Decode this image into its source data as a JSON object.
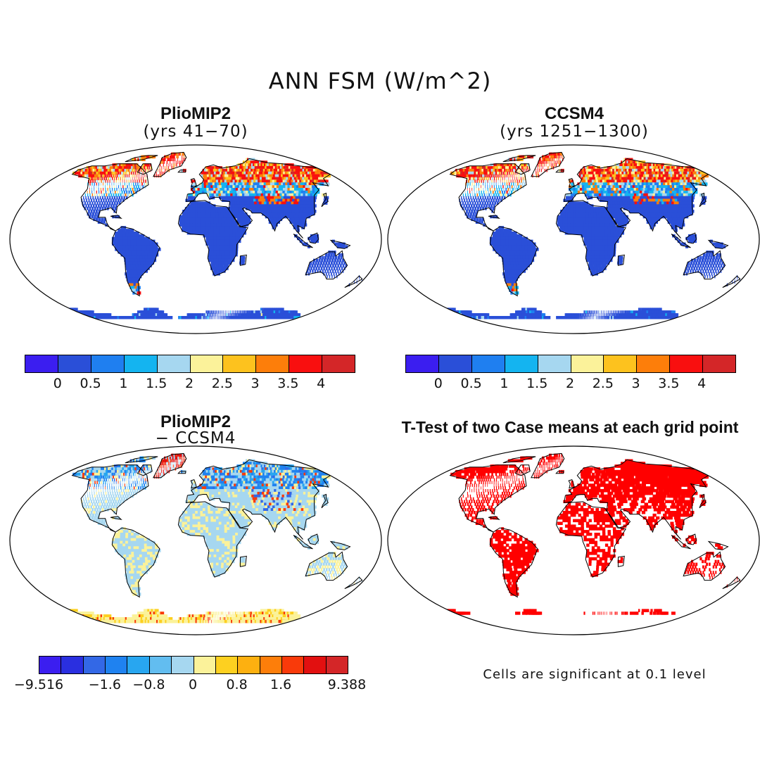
{
  "figure": {
    "title": "ANN FSM (W/m^2)"
  },
  "panels": [
    {
      "id": "pliomip2",
      "title": "PlioMIP2",
      "subtitle": "(yrs 41−70)",
      "field": "absolute"
    },
    {
      "id": "ccsm4",
      "title": "CCSM4",
      "subtitle": "(yrs 1251−1300)",
      "field": "absolute"
    },
    {
      "id": "diff",
      "title": "PlioMIP2",
      "subtitle": "− CCSM4",
      "field": "difference"
    },
    {
      "id": "ttest",
      "title": "T-Test of two Case means at each grid point",
      "subtitle": "",
      "field": "significance"
    }
  ],
  "colorbars": {
    "absolute": {
      "colors": [
        "#3b1ef0",
        "#2a4fd8",
        "#1f7ff0",
        "#14b4f0",
        "#a6d7f0",
        "#fbf29a",
        "#fdc21e",
        "#fd7e0a",
        "#f90f0f",
        "#d42628"
      ],
      "labels": [
        "0",
        "0.5",
        "1",
        "1.5",
        "2",
        "2.5",
        "3",
        "3.5",
        "4"
      ]
    },
    "difference": {
      "colors": [
        "#3b1ef0",
        "#2a2fe0",
        "#3368e6",
        "#1f82f0",
        "#28a6f0",
        "#62bdf0",
        "#a6d7f0",
        "#fbf29a",
        "#fdd020",
        "#fdb010",
        "#fd7e0a",
        "#f93a0a",
        "#e21010",
        "#d42628"
      ],
      "labels": [
        "−9.516",
        "−1.6",
        "−0.8",
        "0",
        "0.8",
        "1.6",
        "9.388"
      ]
    }
  },
  "significance_note": "Cells are significant at 0.1 level",
  "map_colors": {
    "ocean": "#ffffff",
    "land_base_abs": "#2a4fd8",
    "land_base_diff": "#a6d7f0",
    "significant": "#ff0000"
  }
}
